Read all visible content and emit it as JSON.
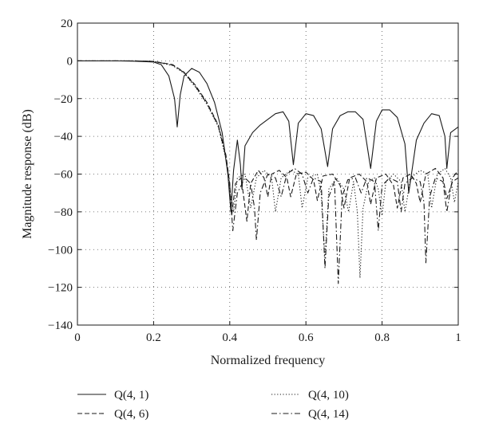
{
  "chart_data": {
    "type": "line",
    "title": "",
    "xlabel": "Normalized frequency",
    "ylabel": "Magnitude response (dB)",
    "xlim": [
      0,
      1
    ],
    "ylim": [
      -140,
      20
    ],
    "x_ticks": [
      0,
      0.2,
      0.4,
      0.6,
      0.8,
      1
    ],
    "x_tick_labels": [
      "0",
      "0.2",
      "0.4",
      "0.6",
      "0.8",
      "1"
    ],
    "y_ticks": [
      20,
      0,
      -20,
      -40,
      -60,
      -80,
      -100,
      -120,
      -140
    ],
    "y_tick_labels": [
      "20",
      "0",
      "−20",
      "−40",
      "−60",
      "−80",
      "−100",
      "−120",
      "−140"
    ],
    "grid": true,
    "legend_position": "below",
    "series": [
      {
        "name": "Q(4, 1)",
        "style": "solid",
        "color": "#1a1a1a",
        "points": [
          [
            0,
            0
          ],
          [
            0.1,
            0
          ],
          [
            0.15,
            -0.2
          ],
          [
            0.2,
            -0.6
          ],
          [
            0.22,
            -2
          ],
          [
            0.24,
            -8
          ],
          [
            0.255,
            -20
          ],
          [
            0.262,
            -35
          ],
          [
            0.27,
            -18
          ],
          [
            0.28,
            -8
          ],
          [
            0.3,
            -4
          ],
          [
            0.32,
            -6
          ],
          [
            0.34,
            -12
          ],
          [
            0.36,
            -22
          ],
          [
            0.38,
            -38
          ],
          [
            0.395,
            -60
          ],
          [
            0.403,
            -80
          ],
          [
            0.41,
            -58
          ],
          [
            0.42,
            -42
          ],
          [
            0.428,
            -55
          ],
          [
            0.432,
            -68
          ],
          [
            0.44,
            -45
          ],
          [
            0.46,
            -38
          ],
          [
            0.48,
            -34
          ],
          [
            0.5,
            -31
          ],
          [
            0.52,
            -28
          ],
          [
            0.54,
            -27
          ],
          [
            0.555,
            -32
          ],
          [
            0.567,
            -55
          ],
          [
            0.58,
            -33
          ],
          [
            0.6,
            -28
          ],
          [
            0.62,
            -29
          ],
          [
            0.64,
            -36
          ],
          [
            0.657,
            -56
          ],
          [
            0.67,
            -36
          ],
          [
            0.69,
            -29
          ],
          [
            0.71,
            -27
          ],
          [
            0.73,
            -27
          ],
          [
            0.75,
            -31
          ],
          [
            0.77,
            -57
          ],
          [
            0.785,
            -32
          ],
          [
            0.8,
            -26
          ],
          [
            0.82,
            -26
          ],
          [
            0.84,
            -30
          ],
          [
            0.86,
            -44
          ],
          [
            0.87,
            -70
          ],
          [
            0.88,
            -56
          ],
          [
            0.89,
            -42
          ],
          [
            0.91,
            -33
          ],
          [
            0.93,
            -28
          ],
          [
            0.95,
            -29
          ],
          [
            0.965,
            -40
          ],
          [
            0.97,
            -57
          ],
          [
            0.98,
            -38
          ],
          [
            1,
            -35
          ]
        ]
      },
      {
        "name": "Q(4, 6)",
        "style": "dashed",
        "color": "#1a1a1a",
        "points": [
          [
            0,
            0
          ],
          [
            0.15,
            0
          ],
          [
            0.2,
            -0.3
          ],
          [
            0.25,
            -2
          ],
          [
            0.28,
            -6
          ],
          [
            0.31,
            -13
          ],
          [
            0.34,
            -22
          ],
          [
            0.37,
            -34
          ],
          [
            0.39,
            -50
          ],
          [
            0.4,
            -65
          ],
          [
            0.405,
            -82
          ],
          [
            0.415,
            -65
          ],
          [
            0.43,
            -62
          ],
          [
            0.445,
            -85
          ],
          [
            0.455,
            -65
          ],
          [
            0.475,
            -58
          ],
          [
            0.49,
            -62
          ],
          [
            0.5,
            -72
          ],
          [
            0.51,
            -60
          ],
          [
            0.53,
            -58
          ],
          [
            0.55,
            -62
          ],
          [
            0.56,
            -72
          ],
          [
            0.575,
            -60
          ],
          [
            0.6,
            -59
          ],
          [
            0.62,
            -63
          ],
          [
            0.63,
            -74
          ],
          [
            0.645,
            -61
          ],
          [
            0.67,
            -60
          ],
          [
            0.69,
            -66
          ],
          [
            0.7,
            -78
          ],
          [
            0.715,
            -62
          ],
          [
            0.74,
            -60
          ],
          [
            0.76,
            -64
          ],
          [
            0.77,
            -76
          ],
          [
            0.785,
            -62
          ],
          [
            0.81,
            -60
          ],
          [
            0.83,
            -66
          ],
          [
            0.84,
            -78
          ],
          [
            0.855,
            -62
          ],
          [
            0.875,
            -60
          ],
          [
            0.89,
            -65
          ],
          [
            0.9,
            -75
          ],
          [
            0.915,
            -60
          ],
          [
            0.94,
            -57
          ],
          [
            0.96,
            -62
          ],
          [
            0.97,
            -73
          ],
          [
            0.985,
            -64
          ],
          [
            1,
            -62
          ]
        ]
      },
      {
        "name": "Q(4, 10)",
        "style": "dotted",
        "color": "#1a1a1a",
        "points": [
          [
            0,
            0
          ],
          [
            0.15,
            0
          ],
          [
            0.2,
            -0.3
          ],
          [
            0.25,
            -2.5
          ],
          [
            0.28,
            -6.5
          ],
          [
            0.31,
            -14
          ],
          [
            0.34,
            -23
          ],
          [
            0.37,
            -35
          ],
          [
            0.39,
            -52
          ],
          [
            0.4,
            -68
          ],
          [
            0.41,
            -80
          ],
          [
            0.42,
            -62
          ],
          [
            0.44,
            -60
          ],
          [
            0.455,
            -78
          ],
          [
            0.47,
            -62
          ],
          [
            0.49,
            -58
          ],
          [
            0.51,
            -62
          ],
          [
            0.52,
            -80
          ],
          [
            0.535,
            -62
          ],
          [
            0.56,
            -58
          ],
          [
            0.58,
            -60
          ],
          [
            0.59,
            -78
          ],
          [
            0.605,
            -62
          ],
          [
            0.63,
            -60
          ],
          [
            0.64,
            -70
          ],
          [
            0.65,
            -105
          ],
          [
            0.66,
            -68
          ],
          [
            0.68,
            -62
          ],
          [
            0.7,
            -68
          ],
          [
            0.712,
            -80
          ],
          [
            0.725,
            -64
          ],
          [
            0.735,
            -80
          ],
          [
            0.742,
            -115
          ],
          [
            0.75,
            -78
          ],
          [
            0.765,
            -64
          ],
          [
            0.78,
            -62
          ],
          [
            0.79,
            -68
          ],
          [
            0.8,
            -82
          ],
          [
            0.81,
            -64
          ],
          [
            0.83,
            -60
          ],
          [
            0.85,
            -64
          ],
          [
            0.86,
            -80
          ],
          [
            0.875,
            -62
          ],
          [
            0.9,
            -58
          ],
          [
            0.92,
            -60
          ],
          [
            0.93,
            -78
          ],
          [
            0.945,
            -60
          ],
          [
            0.965,
            -57
          ],
          [
            0.98,
            -62
          ],
          [
            0.99,
            -75
          ],
          [
            1,
            -64
          ]
        ]
      },
      {
        "name": "Q(4, 14)",
        "style": "dashdot",
        "color": "#1a1a1a",
        "points": [
          [
            0,
            0
          ],
          [
            0.15,
            0
          ],
          [
            0.2,
            -0.3
          ],
          [
            0.25,
            -2.2
          ],
          [
            0.28,
            -6.2
          ],
          [
            0.31,
            -13.5
          ],
          [
            0.34,
            -22.5
          ],
          [
            0.37,
            -34.5
          ],
          [
            0.39,
            -51
          ],
          [
            0.4,
            -66
          ],
          [
            0.408,
            -90
          ],
          [
            0.42,
            -70
          ],
          [
            0.44,
            -62
          ],
          [
            0.455,
            -65
          ],
          [
            0.465,
            -78
          ],
          [
            0.47,
            -95
          ],
          [
            0.48,
            -70
          ],
          [
            0.5,
            -60
          ],
          [
            0.52,
            -62
          ],
          [
            0.535,
            -72
          ],
          [
            0.55,
            -60
          ],
          [
            0.57,
            -57
          ],
          [
            0.59,
            -60
          ],
          [
            0.605,
            -70
          ],
          [
            0.62,
            -62
          ],
          [
            0.64,
            -64
          ],
          [
            0.65,
            -110
          ],
          [
            0.66,
            -72
          ],
          [
            0.675,
            -64
          ],
          [
            0.685,
            -118
          ],
          [
            0.695,
            -72
          ],
          [
            0.71,
            -63
          ],
          [
            0.73,
            -62
          ],
          [
            0.745,
            -70
          ],
          [
            0.76,
            -62
          ],
          [
            0.78,
            -64
          ],
          [
            0.79,
            -90
          ],
          [
            0.8,
            -66
          ],
          [
            0.82,
            -62
          ],
          [
            0.84,
            -64
          ],
          [
            0.85,
            -80
          ],
          [
            0.86,
            -65
          ],
          [
            0.88,
            -62
          ],
          [
            0.9,
            -64
          ],
          [
            0.91,
            -75
          ],
          [
            0.915,
            -107
          ],
          [
            0.925,
            -72
          ],
          [
            0.94,
            -62
          ],
          [
            0.96,
            -64
          ],
          [
            0.97,
            -80
          ],
          [
            0.985,
            -62
          ],
          [
            1,
            -58
          ]
        ]
      }
    ]
  }
}
